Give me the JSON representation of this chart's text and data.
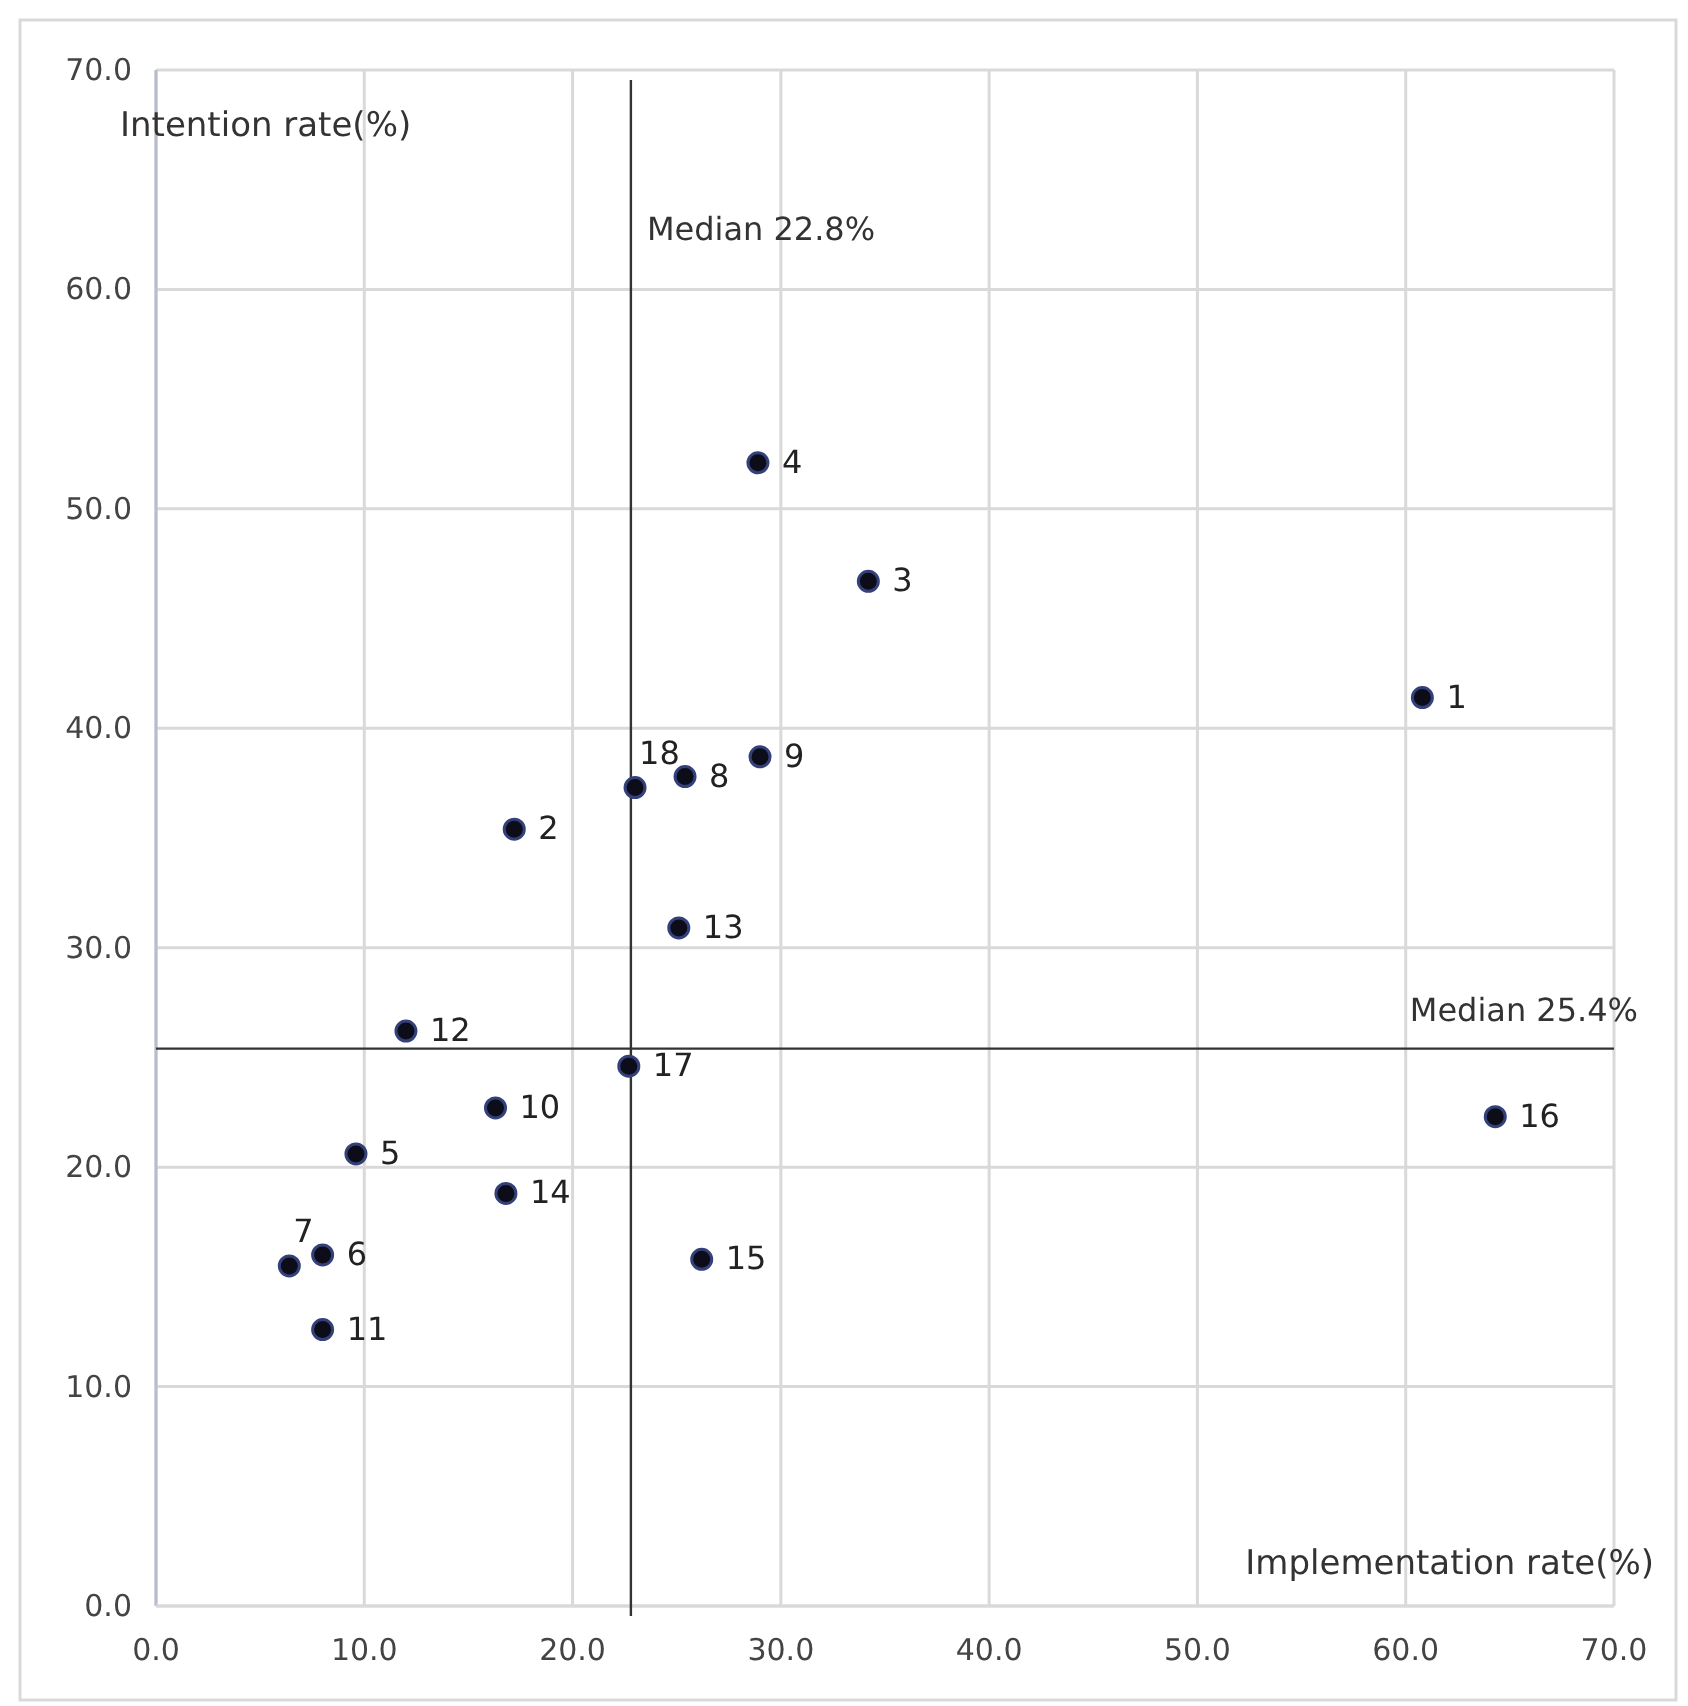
{
  "chart_data": {
    "type": "scatter",
    "xlabel": "Implementation rate(%)",
    "ylabel": "Intention rate(%)",
    "x": [
      60.8,
      17.2,
      34.2,
      28.9,
      9.6,
      8.0,
      6.4,
      25.4,
      29.0,
      16.3,
      8.0,
      12.0,
      25.1,
      16.8,
      26.2,
      64.3,
      22.7,
      23.0
    ],
    "series": [
      {
        "color": "#0d0d1a",
        "values": [
          41.4,
          35.4,
          46.7,
          52.1,
          20.6,
          16.0,
          15.5,
          37.8,
          38.7,
          22.7,
          12.6,
          26.2,
          30.9,
          18.8,
          15.8,
          22.3,
          24.6,
          37.3
        ]
      }
    ],
    "marker": "circle",
    "grid": true,
    "xlim": [
      0,
      70
    ],
    "ylim": [
      0,
      70
    ],
    "xticks": [
      {
        "value": 0,
        "label": "0.0"
      },
      {
        "value": 10,
        "label": "10.0"
      },
      {
        "value": 20,
        "label": "20.0"
      },
      {
        "value": 30,
        "label": "30.0"
      },
      {
        "value": 40,
        "label": "40.0"
      },
      {
        "value": 50,
        "label": "50.0"
      },
      {
        "value": 60,
        "label": "60.0"
      },
      {
        "value": 70,
        "label": "70.0"
      }
    ],
    "yticks": [
      {
        "value": 0,
        "label": "0.0"
      },
      {
        "value": 10,
        "label": "10.0"
      },
      {
        "value": 20,
        "label": "20.0"
      },
      {
        "value": 30,
        "label": "30.0"
      },
      {
        "value": 40,
        "label": "40.0"
      },
      {
        "value": 50,
        "label": "50.0"
      },
      {
        "value": 60,
        "label": "60.0"
      },
      {
        "value": 70,
        "label": "70.0"
      }
    ],
    "ref_lines": [
      {
        "axis": "x",
        "value": 22.8,
        "label": "Median 22.8%",
        "color": "#333333"
      },
      {
        "axis": "y",
        "value": 25.4,
        "label": "Median 25.4%",
        "color": "#333333"
      }
    ],
    "annotations": [
      {
        "text": "1",
        "x": 60.8,
        "y": 41.4
      },
      {
        "text": "2",
        "x": 17.2,
        "y": 35.4
      },
      {
        "text": "3",
        "x": 34.2,
        "y": 46.7
      },
      {
        "text": "4",
        "x": 28.9,
        "y": 52.1
      },
      {
        "text": "5",
        "x": 9.6,
        "y": 20.6
      },
      {
        "text": "6",
        "x": 8.0,
        "y": 16.0
      },
      {
        "text": "7",
        "x": 6.4,
        "y": 15.5
      },
      {
        "text": "8",
        "x": 25.4,
        "y": 37.8
      },
      {
        "text": "9",
        "x": 29.0,
        "y": 38.7
      },
      {
        "text": "10",
        "x": 16.3,
        "y": 22.7
      },
      {
        "text": "11",
        "x": 8.0,
        "y": 12.6
      },
      {
        "text": "12",
        "x": 12.0,
        "y": 26.2
      },
      {
        "text": "13",
        "x": 25.1,
        "y": 30.9
      },
      {
        "text": "14",
        "x": 16.8,
        "y": 18.8
      },
      {
        "text": "15",
        "x": 26.2,
        "y": 15.8
      },
      {
        "text": "16",
        "x": 64.3,
        "y": 22.3
      },
      {
        "text": "17",
        "x": 22.7,
        "y": 24.6
      },
      {
        "text": "18",
        "x": 23.0,
        "y": 37.3
      }
    ]
  }
}
